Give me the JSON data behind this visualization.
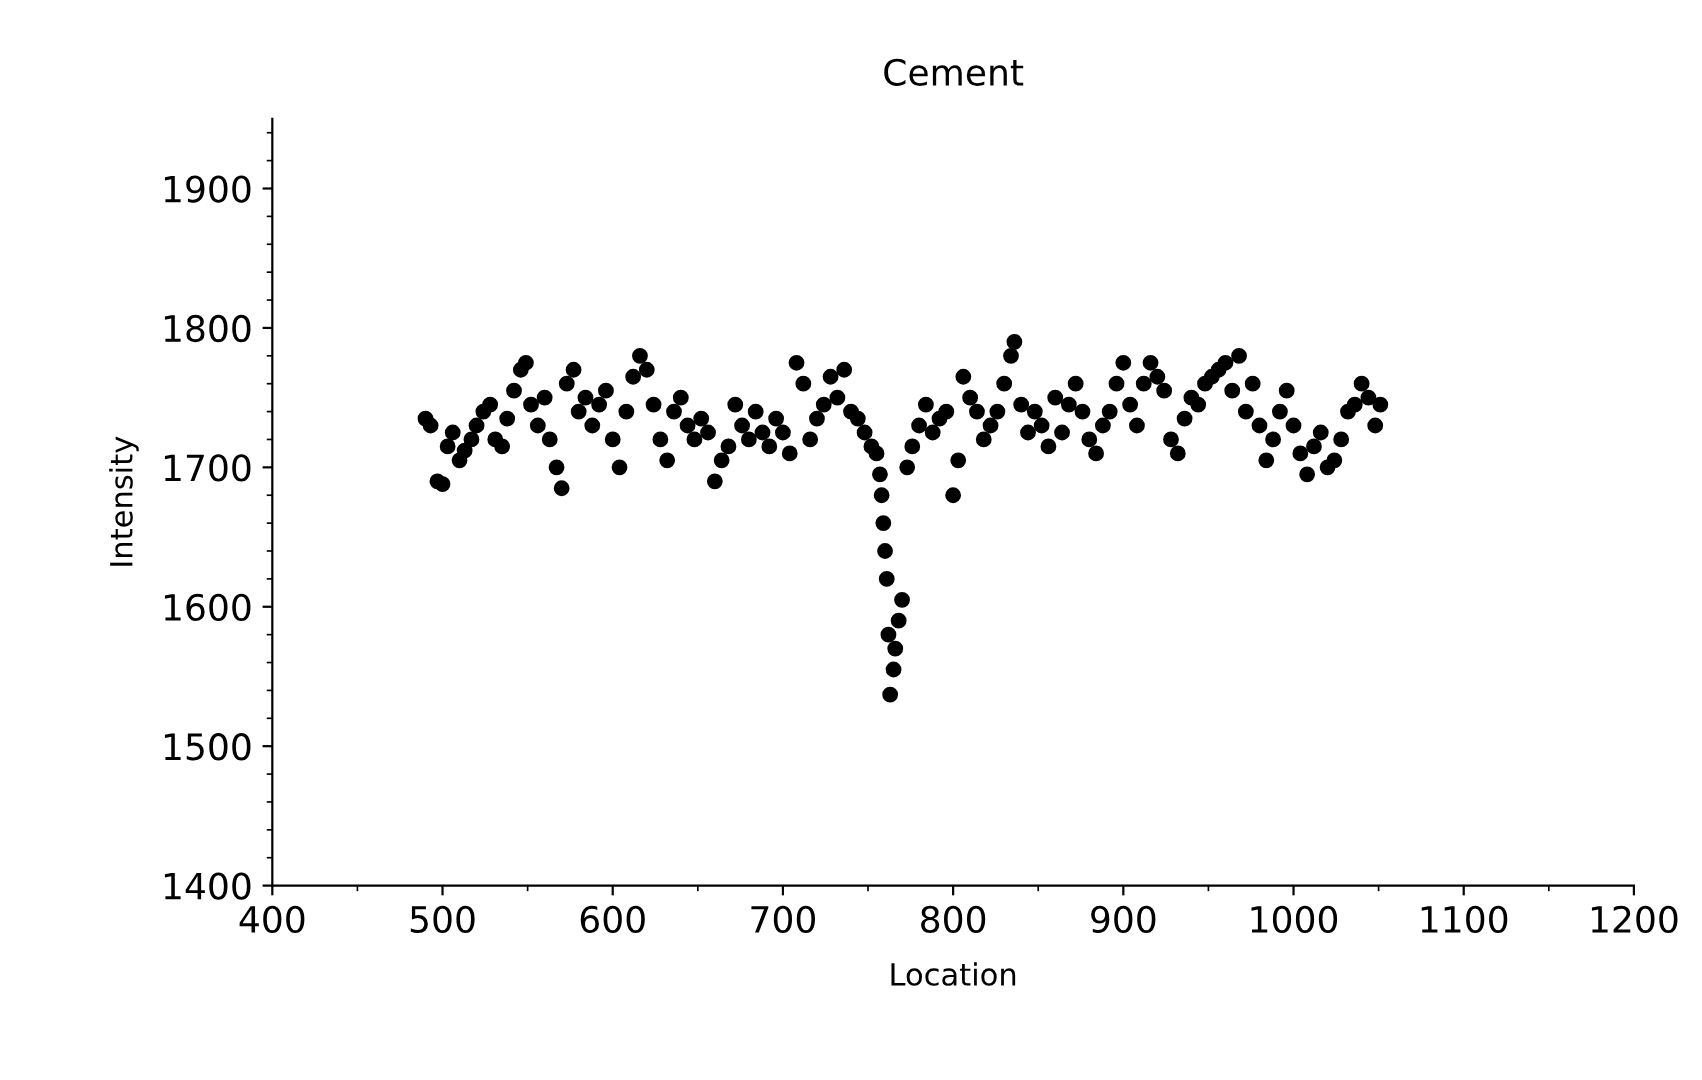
{
  "chart_data": {
    "type": "scatter",
    "title": "Cement",
    "xlabel": "Location",
    "ylabel": "Intensity",
    "xlim": [
      400,
      1200
    ],
    "ylim": [
      1400,
      1950
    ],
    "xticks": [
      400,
      500,
      600,
      700,
      800,
      900,
      1000,
      1100,
      1200
    ],
    "yticks": [
      1400,
      1500,
      1600,
      1700,
      1800,
      1900
    ],
    "marker": "circle",
    "grid": false,
    "legend": false,
    "series": [
      {
        "color": "#000000",
        "x": [
          490,
          493,
          497,
          500,
          503,
          506,
          510,
          513,
          517,
          520,
          524,
          528,
          531,
          535,
          538,
          542,
          546,
          549,
          552,
          556,
          560,
          563,
          567,
          570,
          573,
          577,
          580,
          584,
          588,
          592,
          596,
          600,
          604,
          608,
          612,
          616,
          620,
          624,
          628,
          632,
          636,
          640,
          644,
          648,
          652,
          656,
          660,
          664,
          668,
          672,
          676,
          680,
          684,
          688,
          692,
          696,
          700,
          704,
          708,
          712,
          716,
          720,
          724,
          728,
          732,
          736,
          740,
          744,
          748,
          752,
          755,
          757,
          758,
          759,
          760,
          761,
          762,
          763,
          765,
          766,
          768,
          770,
          773,
          776,
          780,
          784,
          788,
          792,
          796,
          800,
          803,
          806,
          810,
          814,
          818,
          822,
          826,
          830,
          834,
          836,
          840,
          844,
          848,
          852,
          856,
          860,
          864,
          868,
          872,
          876,
          880,
          884,
          888,
          892,
          896,
          900,
          904,
          908,
          912,
          916,
          920,
          924,
          928,
          932,
          936,
          940,
          944,
          948,
          952,
          956,
          960,
          964,
          968,
          972,
          976,
          980,
          984,
          988,
          992,
          996,
          1000,
          1004,
          1008,
          1012,
          1016,
          1020,
          1024,
          1028,
          1032,
          1036,
          1040,
          1044,
          1048,
          1051
        ],
        "values": [
          1735,
          1730,
          1690,
          1688,
          1715,
          1725,
          1705,
          1712,
          1720,
          1730,
          1740,
          1745,
          1720,
          1715,
          1735,
          1755,
          1770,
          1775,
          1745,
          1730,
          1750,
          1720,
          1700,
          1685,
          1760,
          1770,
          1740,
          1750,
          1730,
          1745,
          1755,
          1720,
          1700,
          1740,
          1765,
          1780,
          1770,
          1745,
          1720,
          1705,
          1740,
          1750,
          1730,
          1720,
          1735,
          1725,
          1690,
          1705,
          1715,
          1745,
          1730,
          1720,
          1740,
          1725,
          1715,
          1735,
          1725,
          1710,
          1775,
          1760,
          1720,
          1735,
          1745,
          1765,
          1750,
          1770,
          1740,
          1735,
          1725,
          1715,
          1710,
          1695,
          1680,
          1660,
          1640,
          1620,
          1580,
          1537,
          1555,
          1570,
          1590,
          1605,
          1700,
          1715,
          1730,
          1745,
          1725,
          1735,
          1740,
          1680,
          1705,
          1765,
          1750,
          1740,
          1720,
          1730,
          1740,
          1760,
          1780,
          1790,
          1745,
          1725,
          1740,
          1730,
          1715,
          1750,
          1725,
          1745,
          1760,
          1740,
          1720,
          1710,
          1730,
          1740,
          1760,
          1775,
          1745,
          1730,
          1760,
          1775,
          1765,
          1755,
          1720,
          1710,
          1735,
          1750,
          1745,
          1760,
          1765,
          1770,
          1775,
          1755,
          1780,
          1740,
          1760,
          1730,
          1705,
          1720,
          1740,
          1755,
          1730,
          1710,
          1695,
          1715,
          1725,
          1700,
          1705,
          1720,
          1740,
          1745,
          1760,
          1750,
          1730,
          1745
        ]
      }
    ]
  }
}
